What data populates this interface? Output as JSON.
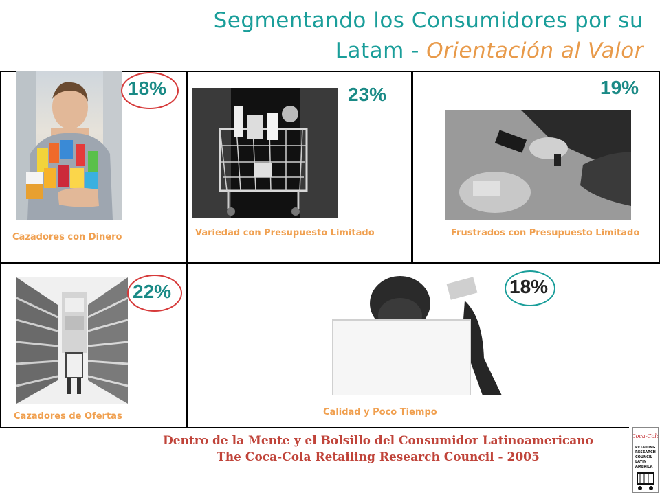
{
  "title": {
    "line1": "Segmentando los Consumidores por su",
    "line2_prefix": "Latam - ",
    "line2_accent": "Orientación al Valor"
  },
  "segments": [
    {
      "label": "Cazadores con Dinero",
      "percent": "18%",
      "ring": "red"
    },
    {
      "label": "Variedad con Presupuesto Limitado",
      "percent": "23%",
      "ring": "none"
    },
    {
      "label": "Frustrados con Presupuesto Limitado",
      "percent": "19%",
      "ring": "none"
    },
    {
      "label": "Cazadores de Ofertas",
      "percent": "22%",
      "ring": "red"
    },
    {
      "label": "Calidad y Poco Tiempo",
      "percent": "18%",
      "ring": "teal"
    }
  ],
  "footer": {
    "line1": "Dentro de la Mente y el Bolsillo del Consumidor Latinoamericano",
    "line2": "The Coca-Cola Retailing Research Council - 2005"
  },
  "logo": {
    "brand": "Coca-Cola",
    "lines": [
      "RETAILING",
      "RESEARCH",
      "COUNCIL",
      "LATIN",
      "AMERICA"
    ]
  },
  "colors": {
    "title": "#1a9e9a",
    "accent": "#e89a4a",
    "label": "#f0a050",
    "percent": "#1a8a86",
    "ring_red": "#d63a3a",
    "ring_teal": "#1a9e9a",
    "footer": "#c0443a"
  }
}
